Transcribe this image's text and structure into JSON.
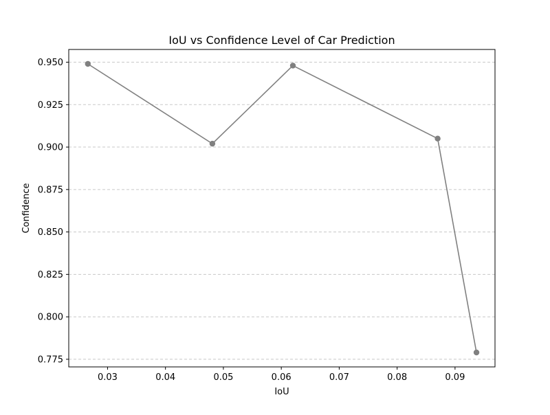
{
  "chart_data": {
    "type": "line",
    "title": "IoU vs Confidence Level of Car Prediction",
    "xlabel": "IoU",
    "ylabel": "Confidence",
    "xlim": [
      0.0233,
      0.0969
    ],
    "ylim": [
      0.7705,
      0.9575
    ],
    "x_ticks": [
      "0.03",
      "0.04",
      "0.05",
      "0.06",
      "0.07",
      "0.08",
      "0.09"
    ],
    "y_ticks": [
      "0.775",
      "0.800",
      "0.825",
      "0.850",
      "0.875",
      "0.900",
      "0.925",
      "0.950"
    ],
    "grid": "horizontal dashed",
    "series": [
      {
        "color": "#808080",
        "x": [
          0.0266,
          0.0481,
          0.062,
          0.087,
          0.0937
        ],
        "y": [
          0.949,
          0.902,
          0.948,
          0.905,
          0.779
        ]
      }
    ]
  }
}
